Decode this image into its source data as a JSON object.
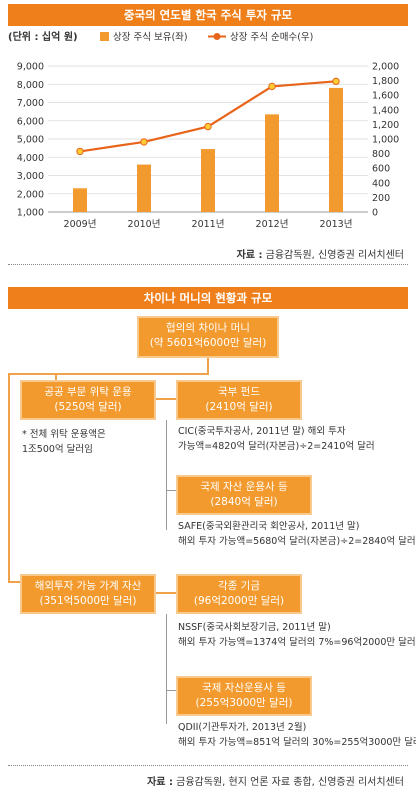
{
  "section1": {
    "title": "중국의 연도별 한국 주식 투자 규모"
  },
  "section2": {
    "title": "차이나 머니의 현황과 규모"
  },
  "chart_data": {
    "type": "bar+line",
    "unit_label": "(단위 : 십억 원)",
    "categories": [
      "2009년",
      "2010년",
      "2011년",
      "2012년",
      "2013년"
    ],
    "left_axis": {
      "ticks": [
        "1,000",
        "2,000",
        "3,000",
        "4,000",
        "5,000",
        "6,000",
        "7,000",
        "8,000",
        "9,000"
      ],
      "range": [
        1000,
        9000
      ]
    },
    "right_axis": {
      "ticks": [
        "0",
        "200",
        "400",
        "600",
        "800",
        "1,000",
        "1,200",
        "1,400",
        "1,600",
        "1,800",
        "2,000"
      ],
      "range": [
        0,
        2000
      ]
    },
    "series": [
      {
        "name": "상장 주식 보유(좌)",
        "type": "bar",
        "axis": "left",
        "color": "#f39a2e",
        "values": [
          2300,
          3600,
          4450,
          6350,
          7800
        ]
      },
      {
        "name": "상장 주식 순매수(우)",
        "type": "line",
        "axis": "right",
        "color": "#e8641a",
        "values": [
          830,
          960,
          1170,
          1720,
          1790
        ]
      }
    ],
    "grid": true,
    "legend_position": "top"
  },
  "source1": {
    "label": "자료 :",
    "text": "금융감독원, 신영증권 리서치센터"
  },
  "tree": {
    "root": {
      "line1": "협의의 차이나 머니",
      "line2": "(약 5601억6000만 달러)"
    },
    "public": {
      "line1": "공공 부문 위탁 운용",
      "line2": "(5250억 달러)"
    },
    "public_note": {
      "line1": "* 전체 위탁 운용액은",
      "line2": "1조500억 달러임"
    },
    "cic": {
      "line1": "국부 펀드",
      "line2": "(2410억 달러)"
    },
    "cic_note": {
      "line1": "CIC(중국투자공사, 2011년 말) 해외 투자",
      "line2": "가능액=4820억 달러(자본금)÷2=2410억 달러"
    },
    "intl1": {
      "line1": "국제 자산 운용사 등",
      "line2": "(2840억 달러)"
    },
    "intl1_note": {
      "line1": "SAFE(중국외환관리국 회안공사, 2011년 말)",
      "line2": "해외 투자 가능액=5680억 달러(자본금)÷2=2840억 달러"
    },
    "household": {
      "line1": "해외투자 가능 가계 자산",
      "line2": "(351억5000만 달러)"
    },
    "fund": {
      "line1": "각종 기금",
      "line2": "(96억2000만 달러)"
    },
    "fund_note": {
      "line1": "NSSF(중국사회보장기금, 2011년 말)",
      "line2": "해외 투자 가능액=1374억 달러의 7%=96억2000만 달러"
    },
    "intl2": {
      "line1": "국제 자산운용사 등",
      "line2": "(255억3000만 달러)"
    },
    "intl2_note": {
      "line1": "QDII(기관투자가, 2013년 2월)",
      "line2": "해외 투자 가능액=851억 달러의 30%=255억3000만 달러"
    }
  },
  "source2": {
    "label": "자료 :",
    "text": "금융감독원, 현지 언론 자료 종합, 신영증권 리서치센터"
  }
}
